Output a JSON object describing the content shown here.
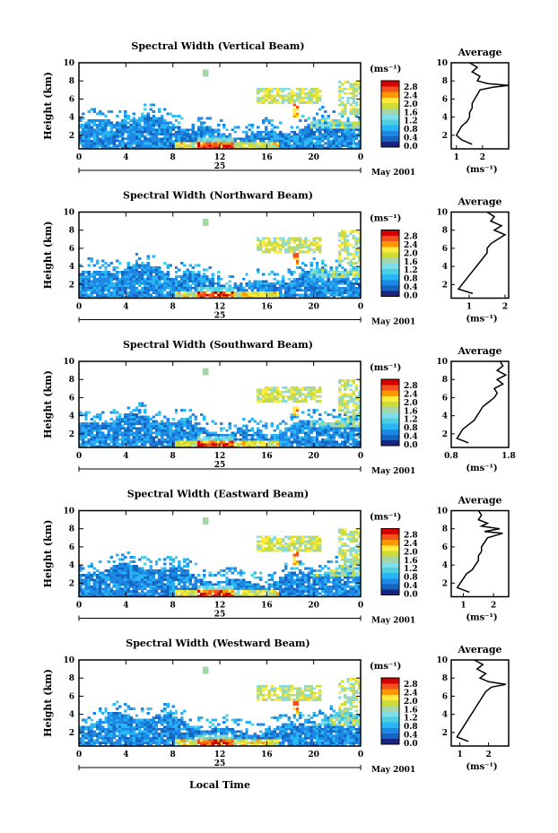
{
  "figure": {
    "xlabel": "Local Time",
    "date_label": "May 2001",
    "day_label": "25",
    "x_ticks": [
      "0",
      "4",
      "8",
      "12",
      "16",
      "20",
      "0"
    ],
    "y_ticks": [
      "2",
      "4",
      "6",
      "8",
      "10"
    ],
    "ylabel": "Height (km)",
    "colorbar_unit": "(ms⁻¹)",
    "colorbar_ticks": [
      "0.0",
      "0.4",
      "0.8",
      "1.2",
      "1.6",
      "2.0",
      "2.4",
      "2.8"
    ],
    "avg_title": "Average",
    "avg_unit": "(ms⁻¹)",
    "colormap": [
      "#1a237e",
      "#1565c0",
      "#1e88e5",
      "#29b6f6",
      "#4dd0e1",
      "#80deea",
      "#a5d6a7",
      "#cddc39",
      "#ffeb3b",
      "#ff9800",
      "#f4511e",
      "#d50000"
    ],
    "no_data_color": "#ffffff"
  },
  "chart_data": [
    {
      "type": "heatmap",
      "title": "Spectral Width (Vertical Beam)",
      "x_range_hours": [
        0,
        24
      ],
      "ylim": [
        0.5,
        10
      ],
      "value_range": [
        0.0,
        2.8
      ],
      "average_profile": {
        "type": "line",
        "title": "Average",
        "x_ticks": [
          "1",
          "2"
        ],
        "xlim": [
          0.8,
          3.0
        ],
        "heights_km": [
          1.0,
          1.5,
          2.0,
          2.5,
          3.0,
          3.5,
          4.0,
          4.5,
          5.0,
          5.5,
          6.0,
          6.5,
          7.0,
          7.3,
          7.5,
          7.7,
          8.0,
          8.5,
          9.0,
          9.5,
          10.0
        ],
        "values": [
          1.6,
          1.2,
          1.0,
          1.1,
          1.2,
          1.4,
          1.5,
          1.5,
          1.6,
          1.6,
          1.7,
          1.8,
          1.9,
          2.4,
          3.0,
          2.2,
          1.8,
          1.9,
          1.6,
          1.8,
          1.5
        ]
      }
    },
    {
      "type": "heatmap",
      "title": "Spectral Width (Northward Beam)",
      "x_range_hours": [
        0,
        24
      ],
      "ylim": [
        0.5,
        10
      ],
      "value_range": [
        0.0,
        2.8
      ],
      "average_profile": {
        "type": "line",
        "title": "Average",
        "x_ticks": [
          "1",
          "2"
        ],
        "xlim": [
          0.5,
          2.1
        ],
        "heights_km": [
          1.0,
          1.5,
          2.0,
          2.5,
          3.0,
          3.5,
          4.0,
          4.5,
          5.0,
          5.5,
          6.0,
          6.5,
          7.0,
          7.5,
          8.0,
          8.5,
          9.0,
          9.5,
          10.0
        ],
        "values": [
          1.1,
          0.7,
          0.8,
          0.9,
          1.0,
          1.1,
          1.2,
          1.3,
          1.4,
          1.5,
          1.5,
          1.6,
          1.8,
          2.0,
          1.7,
          1.9,
          1.6,
          1.7,
          1.5
        ]
      }
    },
    {
      "type": "heatmap",
      "title": "Spectral Width (Southward Beam)",
      "x_range_hours": [
        0,
        24
      ],
      "ylim": [
        0.5,
        10
      ],
      "value_range": [
        0.0,
        2.8
      ],
      "average_profile": {
        "type": "line",
        "title": "Average",
        "x_ticks": [
          "0.8",
          "1.8"
        ],
        "xlim": [
          0.8,
          1.8
        ],
        "heights_km": [
          1.0,
          1.5,
          2.0,
          2.5,
          3.0,
          3.5,
          4.0,
          4.5,
          5.0,
          5.5,
          6.0,
          6.5,
          7.0,
          7.5,
          8.0,
          8.5,
          9.0,
          9.5,
          10.0
        ],
        "values": [
          1.1,
          0.9,
          0.95,
          1.0,
          1.1,
          1.2,
          1.25,
          1.3,
          1.35,
          1.45,
          1.55,
          1.6,
          1.55,
          1.7,
          1.6,
          1.75,
          1.6,
          1.7,
          1.65
        ]
      }
    },
    {
      "type": "heatmap",
      "title": "Spectral Width (Eastward Beam)",
      "x_range_hours": [
        0,
        24
      ],
      "ylim": [
        0.5,
        10
      ],
      "value_range": [
        0.0,
        2.8
      ],
      "average_profile": {
        "type": "line",
        "title": "Average",
        "x_ticks": [
          "1",
          "2"
        ],
        "xlim": [
          0.6,
          2.5
        ],
        "heights_km": [
          1.0,
          1.5,
          2.0,
          2.5,
          3.0,
          3.5,
          4.0,
          4.5,
          5.0,
          5.5,
          6.0,
          6.5,
          7.0,
          7.5,
          7.7,
          8.0,
          8.3,
          8.6,
          9.0,
          9.5,
          10.0
        ],
        "values": [
          1.2,
          0.8,
          0.9,
          1.0,
          1.1,
          1.3,
          1.4,
          1.5,
          1.5,
          1.6,
          1.6,
          1.7,
          1.8,
          2.3,
          1.7,
          2.2,
          1.6,
          1.8,
          1.5,
          1.6,
          1.5
        ]
      }
    },
    {
      "type": "heatmap",
      "title": "Spectral Width (Westward Beam)",
      "x_range_hours": [
        0,
        24
      ],
      "ylim": [
        0.5,
        10
      ],
      "value_range": [
        0.0,
        2.8
      ],
      "average_profile": {
        "type": "line",
        "title": "Average",
        "x_ticks": [
          "1",
          "2"
        ],
        "xlim": [
          0.7,
          2.7
        ],
        "heights_km": [
          1.0,
          1.5,
          2.0,
          2.5,
          3.0,
          3.5,
          4.0,
          4.5,
          5.0,
          5.5,
          6.0,
          6.5,
          7.0,
          7.3,
          7.6,
          8.0,
          8.5,
          9.0,
          9.5,
          10.0
        ],
        "values": [
          1.3,
          0.9,
          1.0,
          1.1,
          1.2,
          1.3,
          1.4,
          1.5,
          1.6,
          1.7,
          1.8,
          1.9,
          2.1,
          2.6,
          2.0,
          1.7,
          1.9,
          1.6,
          1.8,
          1.5
        ]
      }
    }
  ]
}
